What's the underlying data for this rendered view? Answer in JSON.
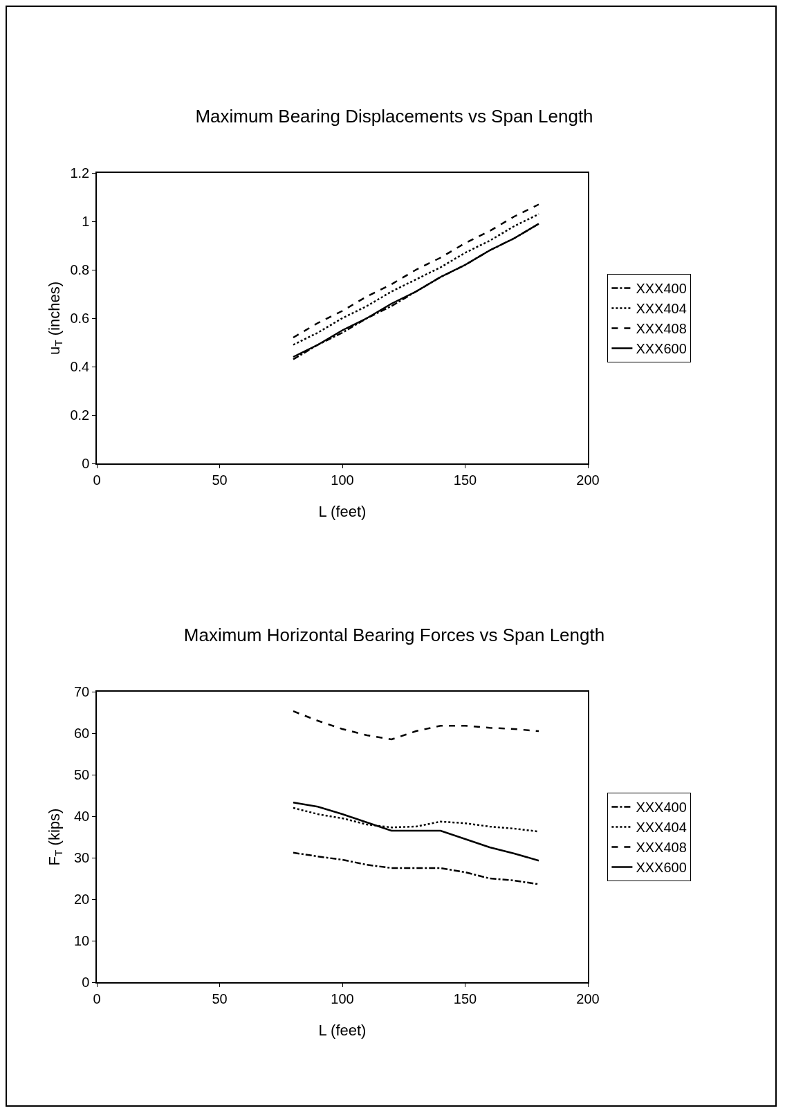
{
  "chart_data": [
    {
      "type": "line",
      "title": "Maximum Bearing Displacements vs Span Length",
      "xlabel": "L (feet)",
      "ylabel": "u$_{T}$ (inches)",
      "x": [
        80,
        90,
        100,
        110,
        120,
        130,
        140,
        150,
        160,
        170,
        180
      ],
      "xlim": [
        0,
        200
      ],
      "xticks": [
        0,
        50,
        100,
        150,
        200
      ],
      "ylim": [
        0,
        1.2
      ],
      "yticks": [
        0,
        0.2,
        0.4,
        0.6,
        0.8,
        1,
        1.2
      ],
      "grid": false,
      "legend": "right",
      "marker": "none",
      "series": [
        {
          "name": "XXX400",
          "color": "#000000",
          "line_style": "dashdot",
          "values": [
            0.43,
            0.49,
            0.54,
            0.6,
            0.65,
            0.71,
            0.77,
            0.82,
            0.88,
            0.93,
            0.99
          ]
        },
        {
          "name": "XXX404",
          "color": "#000000",
          "line_style": "dotted",
          "values": [
            0.49,
            0.54,
            0.6,
            0.65,
            0.71,
            0.76,
            0.81,
            0.87,
            0.92,
            0.98,
            1.03
          ]
        },
        {
          "name": "XXX408",
          "color": "#000000",
          "line_style": "dashed",
          "values": [
            0.52,
            0.58,
            0.63,
            0.69,
            0.74,
            0.8,
            0.85,
            0.91,
            0.96,
            1.02,
            1.07
          ]
        },
        {
          "name": "XXX600",
          "color": "#000000",
          "line_style": "solid",
          "values": [
            0.44,
            0.49,
            0.55,
            0.6,
            0.66,
            0.71,
            0.77,
            0.82,
            0.88,
            0.93,
            0.99
          ]
        }
      ]
    },
    {
      "type": "line",
      "title": "Maximum Horizontal Bearing Forces vs Span Length",
      "xlabel": "L (feet)",
      "ylabel": "F$_{T}$ (kips)",
      "x": [
        80,
        90,
        100,
        110,
        120,
        130,
        140,
        150,
        160,
        170,
        180
      ],
      "xlim": [
        0,
        200
      ],
      "xticks": [
        0,
        50,
        100,
        150,
        200
      ],
      "ylim": [
        0,
        70
      ],
      "yticks": [
        0,
        10,
        20,
        30,
        40,
        50,
        60,
        70
      ],
      "grid": false,
      "legend": "right",
      "marker": "none",
      "series": [
        {
          "name": "XXX400",
          "color": "#000000",
          "line_style": "dashdot",
          "values": [
            31.2,
            30.3,
            29.5,
            28.3,
            27.5,
            27.5,
            27.5,
            26.5,
            25,
            24.5,
            23.6
          ]
        },
        {
          "name": "XXX404",
          "color": "#000000",
          "line_style": "dotted",
          "values": [
            42,
            40.5,
            39.5,
            38,
            37.3,
            37.5,
            38.7,
            38.3,
            37.5,
            37,
            36.3
          ]
        },
        {
          "name": "XXX408",
          "color": "#000000",
          "line_style": "dashed",
          "values": [
            65.3,
            63,
            61,
            59.5,
            58.5,
            60.5,
            61.8,
            61.8,
            61.3,
            61,
            60.5
          ]
        },
        {
          "name": "XXX600",
          "color": "#000000",
          "line_style": "solid",
          "values": [
            43.3,
            42.3,
            40.5,
            38.5,
            36.5,
            36.5,
            36.5,
            34.5,
            32.5,
            31,
            29.3
          ]
        }
      ]
    }
  ]
}
